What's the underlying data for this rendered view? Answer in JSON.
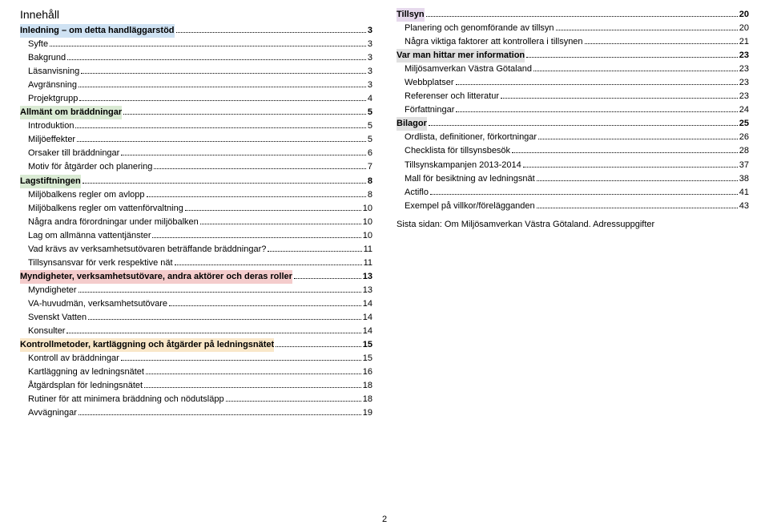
{
  "title": "Innehåll",
  "pageNumber": "2",
  "footnote": "Sista sidan: Om Miljösamverkan Västra Götaland. Adressuppgifter",
  "colors": {
    "hl-blue": "#cfe2f3",
    "hl-green": "#d9ead3",
    "hl-pink": "#f4cccc",
    "hl-tan": "#f9e7c9",
    "hl-lav": "#e6d9ec",
    "hl-gray": "#e0e0e0"
  },
  "left": [
    {
      "label": "Inledning – om detta handläggarstöd",
      "page": "3",
      "bold": true,
      "highlight": "hl-blue"
    },
    {
      "label": "Syfte",
      "page": "3",
      "indent": true
    },
    {
      "label": "Bakgrund",
      "page": "3",
      "indent": true
    },
    {
      "label": "Läsanvisning",
      "page": "3",
      "indent": true
    },
    {
      "label": "Avgränsning",
      "page": "3",
      "indent": true
    },
    {
      "label": "Projektgrupp",
      "page": "4",
      "indent": true
    },
    {
      "label": "Allmänt om bräddningar",
      "page": "5",
      "bold": true,
      "highlight": "hl-green"
    },
    {
      "label": "Introduktion",
      "page": "5",
      "indent": true
    },
    {
      "label": "Miljöeffekter",
      "page": "5",
      "indent": true
    },
    {
      "label": "Orsaker till bräddningar",
      "page": "6",
      "indent": true
    },
    {
      "label": "Motiv för åtgärder och planering",
      "page": "7",
      "indent": true
    },
    {
      "label": "Lagstiftningen",
      "page": "8",
      "bold": true,
      "highlight": "hl-green"
    },
    {
      "label": "Miljöbalkens regler om avlopp",
      "page": "8",
      "indent": true
    },
    {
      "label": "Miljöbalkens regler om vattenförvaltning",
      "page": "10",
      "indent": true
    },
    {
      "label": "Några andra förordningar under miljöbalken",
      "page": "10",
      "indent": true
    },
    {
      "label": "Lag om allmänna vattentjänster",
      "page": "10",
      "indent": true
    },
    {
      "label": "Vad krävs av verksamhetsutövaren beträffande bräddningar?",
      "page": "11",
      "indent": true
    },
    {
      "label": "Tillsynsansvar för verk respektive nät",
      "page": "11",
      "indent": true
    },
    {
      "label": "Myndigheter, verksamhetsutövare, andra aktörer och deras roller",
      "page": "13",
      "bold": true,
      "highlight": "hl-pink"
    },
    {
      "label": "Myndigheter",
      "page": "13",
      "indent": true
    },
    {
      "label": "VA-huvudmän, verksamhetsutövare",
      "page": "14",
      "indent": true
    },
    {
      "label": "Svenskt Vatten",
      "page": "14",
      "indent": true
    },
    {
      "label": "Konsulter",
      "page": "14",
      "indent": true
    },
    {
      "label": "Kontrollmetoder, kartläggning och åtgärder på ledningsnätet",
      "page": "15",
      "bold": true,
      "highlight": "hl-tan"
    },
    {
      "label": "Kontroll av bräddningar",
      "page": "15",
      "indent": true
    },
    {
      "label": "Kartläggning av ledningsnätet",
      "page": "16",
      "indent": true
    },
    {
      "label": "Åtgärdsplan för ledningsnätet",
      "page": "18",
      "indent": true
    },
    {
      "label": "Rutiner för att minimera bräddning och nödutsläpp",
      "page": "18",
      "indent": true
    },
    {
      "label": "Avvägningar",
      "page": "19",
      "indent": true
    }
  ],
  "right": [
    {
      "label": "Tillsyn",
      "page": "20",
      "bold": true,
      "highlight": "hl-lav"
    },
    {
      "label": "Planering och genomförande av tillsyn",
      "page": "20",
      "indent": true
    },
    {
      "label": "Några viktiga faktorer att kontrollera i tillsynen",
      "page": "21",
      "indent": true
    },
    {
      "label": "Var man hittar mer information",
      "page": "23",
      "bold": true,
      "highlight": "hl-gray"
    },
    {
      "label": "Miljösamverkan Västra Götaland",
      "page": "23",
      "indent": true
    },
    {
      "label": "Webbplatser",
      "page": "23",
      "indent": true
    },
    {
      "label": "Referenser och litteratur",
      "page": "23",
      "indent": true
    },
    {
      "label": "Författningar",
      "page": "24",
      "indent": true
    },
    {
      "label": "Bilagor",
      "page": "25",
      "bold": true,
      "highlight": "hl-gray"
    },
    {
      "label": "Ordlista, definitioner, förkortningar",
      "page": "26",
      "indent": true
    },
    {
      "label": "Checklista för tillsynsbesök",
      "page": "28",
      "indent": true
    },
    {
      "label": "Tillsynskampanjen 2013-2014",
      "page": "37",
      "indent": true
    },
    {
      "label": "Mall för besiktning av ledningsnät",
      "page": "38",
      "indent": true
    },
    {
      "label": "Actiflo",
      "page": "41",
      "indent": true
    },
    {
      "label": "Exempel på villkor/förelägganden",
      "page": "43",
      "indent": true
    }
  ]
}
